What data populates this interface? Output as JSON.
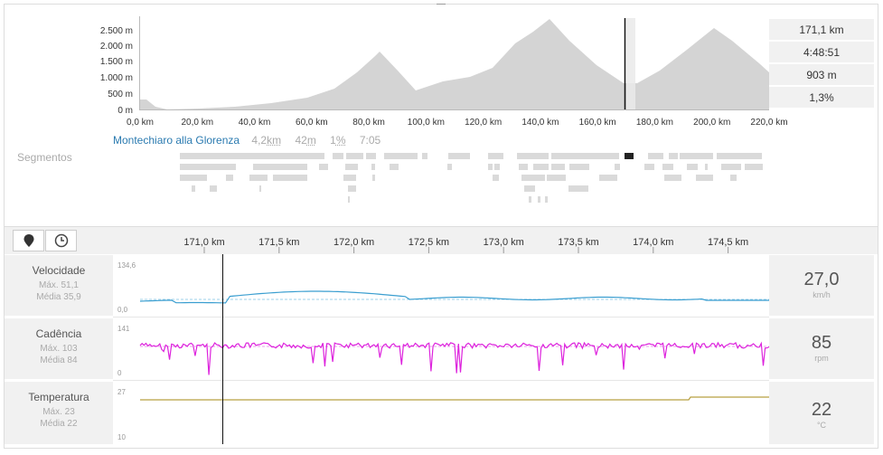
{
  "elevation": {
    "y_ticks": [
      "2.500 m",
      "2.000 m",
      "1.500 m",
      "1.000 m",
      "500 m",
      "0 m"
    ],
    "x_ticks": [
      "0,0 km",
      "20,0 km",
      "40,0 km",
      "60,0 km",
      "80,0 km",
      "100,0 km",
      "120,0 km",
      "140,0 km",
      "160,0 km",
      "180,0 km",
      "200,0 km",
      "220,0 km"
    ]
  },
  "stats": {
    "distance": "171,1 km",
    "time": "4:48:51",
    "elevation": "903 m",
    "grade": "1,3%"
  },
  "segment": {
    "name": "Montechiaro alla Glorenza",
    "distance": "4,2",
    "distance_unit": "km",
    "elevation": "42",
    "elevation_unit": "m",
    "grade": "1",
    "grade_unit": "%",
    "time": "7:05",
    "label": "Segmentos"
  },
  "zoom_ticks": [
    "171,0 km",
    "171,5 km",
    "172,0 km",
    "172,5 km",
    "173,0 km",
    "173,5 km",
    "174,0 km",
    "174,5 km"
  ],
  "rows": {
    "speed": {
      "title": "Velocidade",
      "max": "Máx. 51,1",
      "avg": "Média 35,9",
      "axis_max": "134,6",
      "axis_min": "0,0",
      "value": "27,0",
      "unit": "km/h",
      "color": "#3a9ed0"
    },
    "cadence": {
      "title": "Cadência",
      "max": "Máx. 103",
      "avg": "Média 84",
      "axis_max": "141",
      "axis_min": "0",
      "value": "85",
      "unit": "rpm",
      "color": "#dd22dd"
    },
    "temperature": {
      "title": "Temperatura",
      "max": "Máx. 23",
      "avg": "Média 22",
      "axis_max": "27",
      "axis_min": "10",
      "value": "22",
      "unit": "°C",
      "color": "#b8a040"
    }
  },
  "icons": {
    "pin": "map-pin-icon",
    "clock": "clock-icon"
  }
}
